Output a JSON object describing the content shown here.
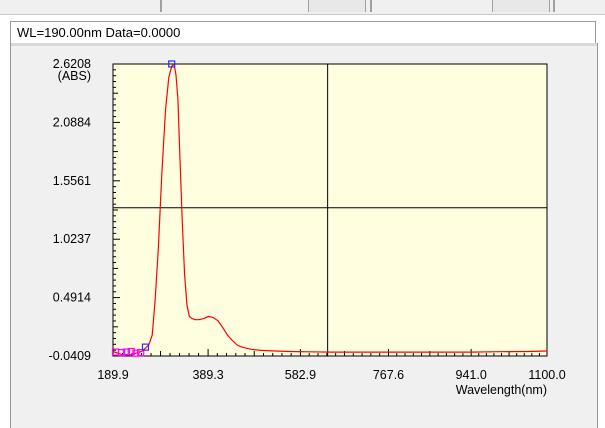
{
  "status_bar": {
    "text": "WL=190.00nm  Data=0.0000"
  },
  "colors": {
    "plot_background": "#ffffe0",
    "curve": "#ff0000",
    "crosshair": "#000000",
    "marker_blue": "#2a2aff",
    "marker_magenta": "#ff00ff"
  },
  "chart_data": {
    "type": "line",
    "title": "",
    "xlabel": "Wavelength(nm)",
    "ylabel": "(ABS)",
    "xlim": [
      189.9,
      1100.0
    ],
    "ylim": [
      -0.0409,
      2.6208
    ],
    "x_ticks": [
      "189.9",
      "389.3",
      "582.9",
      "767.6",
      "941.0",
      "1100.0"
    ],
    "y_ticks": [
      "2.6208",
      "2.0884",
      "1.5561",
      "1.0237",
      "0.4914",
      "-0.0409"
    ],
    "crosshair": {
      "x": 640.0,
      "y": 1.31
    },
    "grid": false,
    "series": [
      {
        "x": [
          190,
          210,
          230,
          250,
          265,
          272,
          278,
          285,
          292,
          300,
          307,
          313,
          318,
          322,
          326,
          330,
          335,
          340,
          345,
          350,
          356,
          362,
          370,
          380,
          390,
          400,
          410,
          420,
          430,
          440,
          450,
          460,
          470,
          480,
          500,
          530,
          560,
          600,
          650,
          700,
          760,
          820,
          880,
          940,
          1000,
          1060,
          1100
        ],
        "values": [
          0.0,
          -0.03,
          -0.025,
          0.0,
          0.06,
          0.15,
          0.45,
          0.95,
          1.6,
          2.2,
          2.5,
          2.6,
          2.62,
          2.52,
          2.3,
          1.8,
          1.2,
          0.7,
          0.42,
          0.32,
          0.3,
          0.29,
          0.29,
          0.3,
          0.32,
          0.31,
          0.28,
          0.22,
          0.15,
          0.1,
          0.06,
          0.04,
          0.03,
          0.02,
          0.01,
          0.005,
          0.0,
          -0.003,
          -0.005,
          -0.005,
          -0.005,
          -0.005,
          -0.005,
          -0.005,
          -0.002,
          0.0,
          0.005
        ]
      }
    ],
    "markers": [
      {
        "x": 195,
        "y": -0.005,
        "color": "magenta"
      },
      {
        "x": 208,
        "y": -0.01,
        "color": "magenta"
      },
      {
        "x": 218,
        "y": -0.005,
        "color": "magenta"
      },
      {
        "x": 228,
        "y": 0.0,
        "color": "magenta"
      },
      {
        "x": 238,
        "y": -0.015,
        "color": "magenta"
      },
      {
        "x": 248,
        "y": -0.01,
        "color": "magenta"
      },
      {
        "x": 258,
        "y": 0.04,
        "color": "blue"
      },
      {
        "x": 313,
        "y": 2.6208,
        "color": "blue"
      }
    ]
  }
}
